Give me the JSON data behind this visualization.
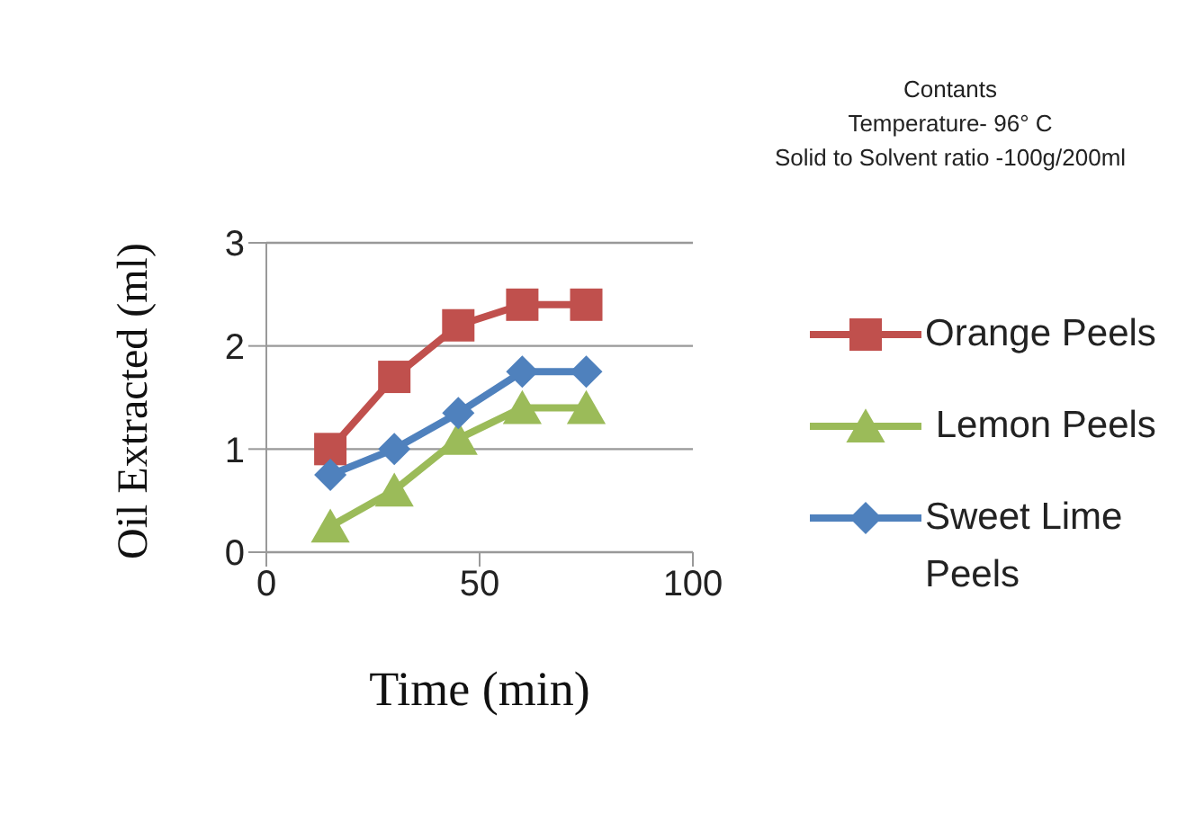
{
  "chart_data": {
    "type": "line",
    "xlabel": "Time (min)",
    "ylabel": "Oil Extracted (ml)",
    "annotations": [
      "Contants",
      "Temperature- 96° C",
      "Solid to Solvent ratio -100g/200ml"
    ],
    "x": [
      15,
      30,
      45,
      60,
      75
    ],
    "series": [
      {
        "name": "Orange Peels",
        "color": "#c0504d",
        "marker": "square",
        "values": [
          1.0,
          1.7,
          2.2,
          2.4,
          2.4
        ]
      },
      {
        "name": " Lemon Peels",
        "color": "#9bbb59",
        "marker": "triangle",
        "values": [
          0.25,
          0.6,
          1.1,
          1.4,
          1.4
        ]
      },
      {
        "name": "Sweet Lime Peels",
        "color": "#4f81bd",
        "marker": "diamond",
        "values": [
          0.75,
          1.0,
          1.35,
          1.75,
          1.75
        ]
      }
    ],
    "xlim": [
      0,
      100
    ],
    "xticks": [
      0,
      50,
      100
    ],
    "ylim": [
      0,
      3
    ],
    "yticks": [
      0,
      1,
      2,
      3
    ],
    "grid": "y",
    "legend": "right"
  }
}
